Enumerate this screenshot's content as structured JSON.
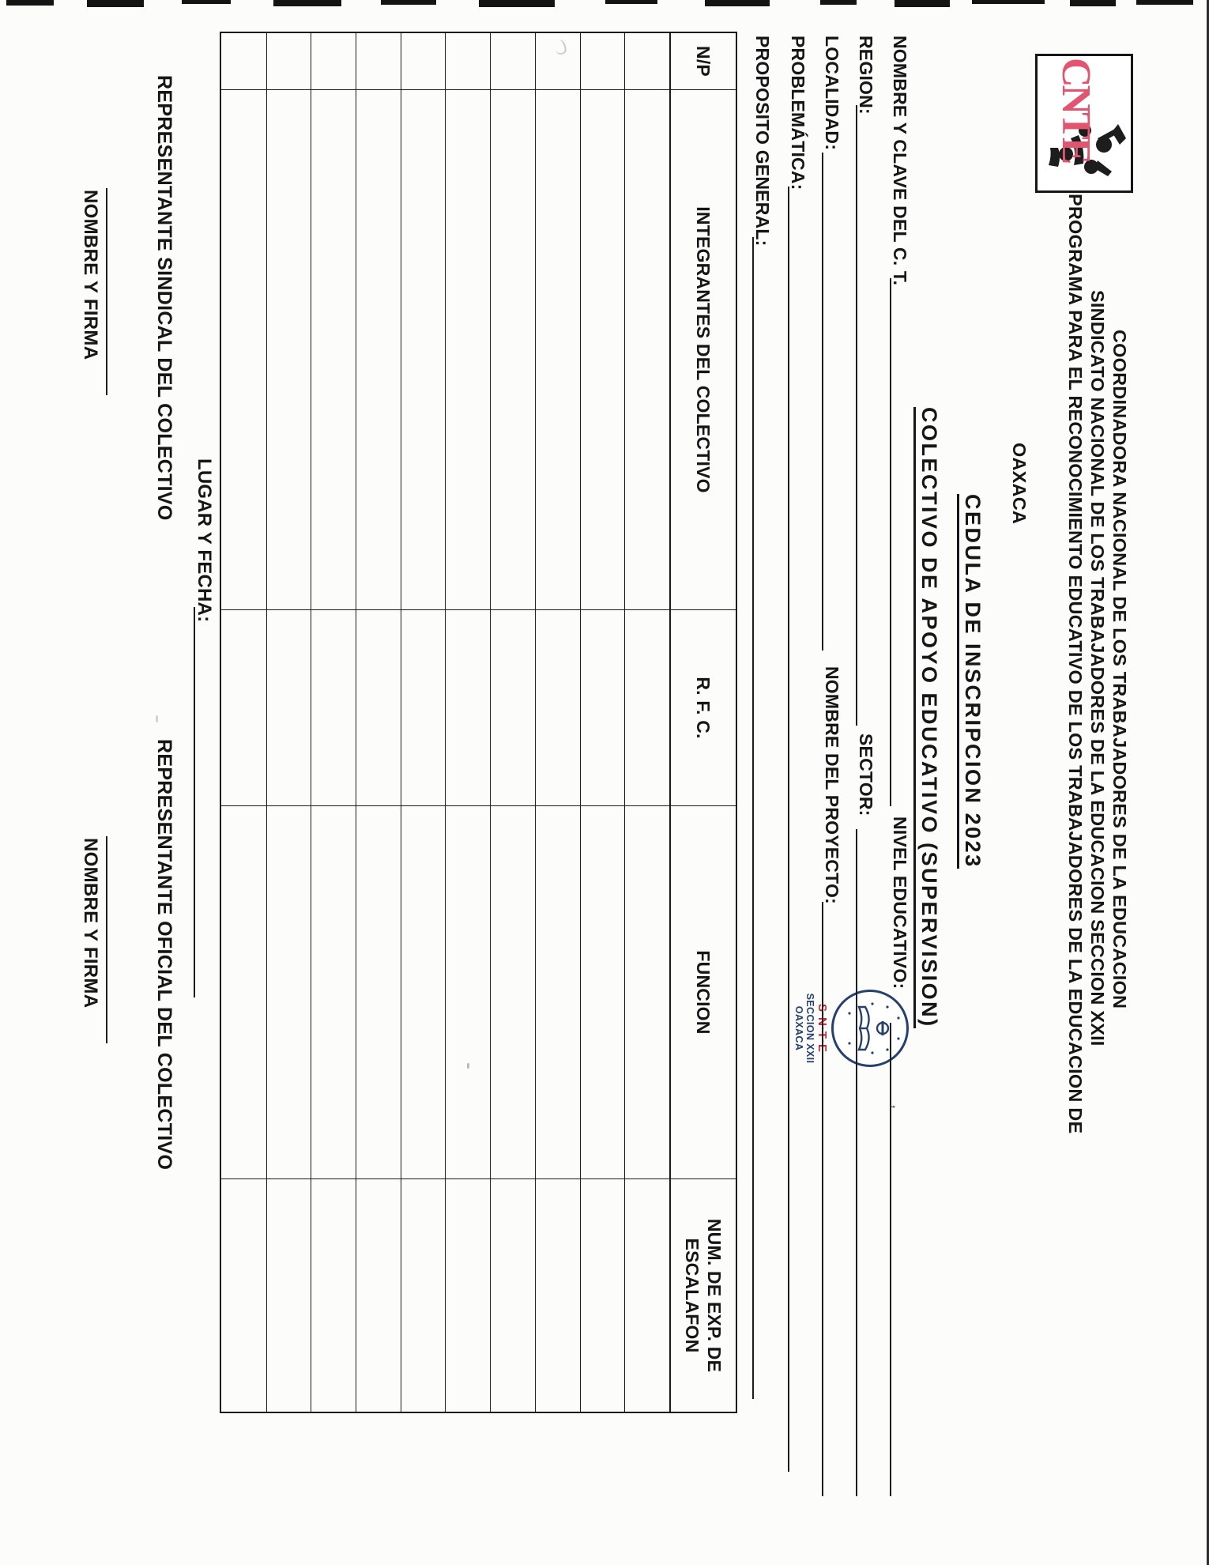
{
  "logo_cnte": {
    "acronym": "CNTE"
  },
  "logo_snte": {
    "acronym": "S·N·T·E",
    "section": "SECCION XXII",
    "state": "OAXACA"
  },
  "header": {
    "line1": "COORDINADORA NACIONAL DE LOS TRABAJADORES DE LA EDUCACION",
    "line2": "SINDICATO NACIONAL DE LOS TRABAJADORES DE LA EDUCACION SECCION XXII",
    "line3": "PROGRAMA PARA EL RECONOCIMIENTO EDUCATIVO DE LOS TRABAJADORES DE LA EDUCACION DE",
    "line4": "OAXACA"
  },
  "title": {
    "line1": "CEDULA DE INSCRIPCION 2023",
    "line2": "COLECTIVO DE APOYO EDUCATIVO (SUPERVISION)"
  },
  "fields": {
    "nombre_ct": "NOMBRE Y CLAVE DEL C. T.",
    "nivel_educativo": "NIVEL EDUCATIVO:",
    "region": "REGION:",
    "sector": "SECTOR:",
    "localidad": "LOCALIDAD:",
    "nombre_proyecto": "NOMBRE DEL PROYECTO:",
    "problematica": "PROBLEMÁTICA:",
    "proposito_general": "PROPOSITO GENERAL:"
  },
  "table": {
    "headers": [
      "N/P",
      "INTEGRANTES DEL COLECTIVO",
      "R. F. C.",
      "FUNCION",
      "NUM. DE EXP. DE\nESCALAFON"
    ],
    "data_rows": 10
  },
  "footer": {
    "lugar_y_fecha": "LUGAR Y FECHA:",
    "representante_sindical": "REPRESENTANTE SINDICAL DEL COLECTIVO",
    "nombre_y_firma_izq": "NOMBRE Y FIRMA",
    "representante_oficial": "REPRESENTANTE OFICIAL DEL COLECTIVO",
    "nombre_y_firma_der": "NOMBRE Y FIRMA"
  }
}
